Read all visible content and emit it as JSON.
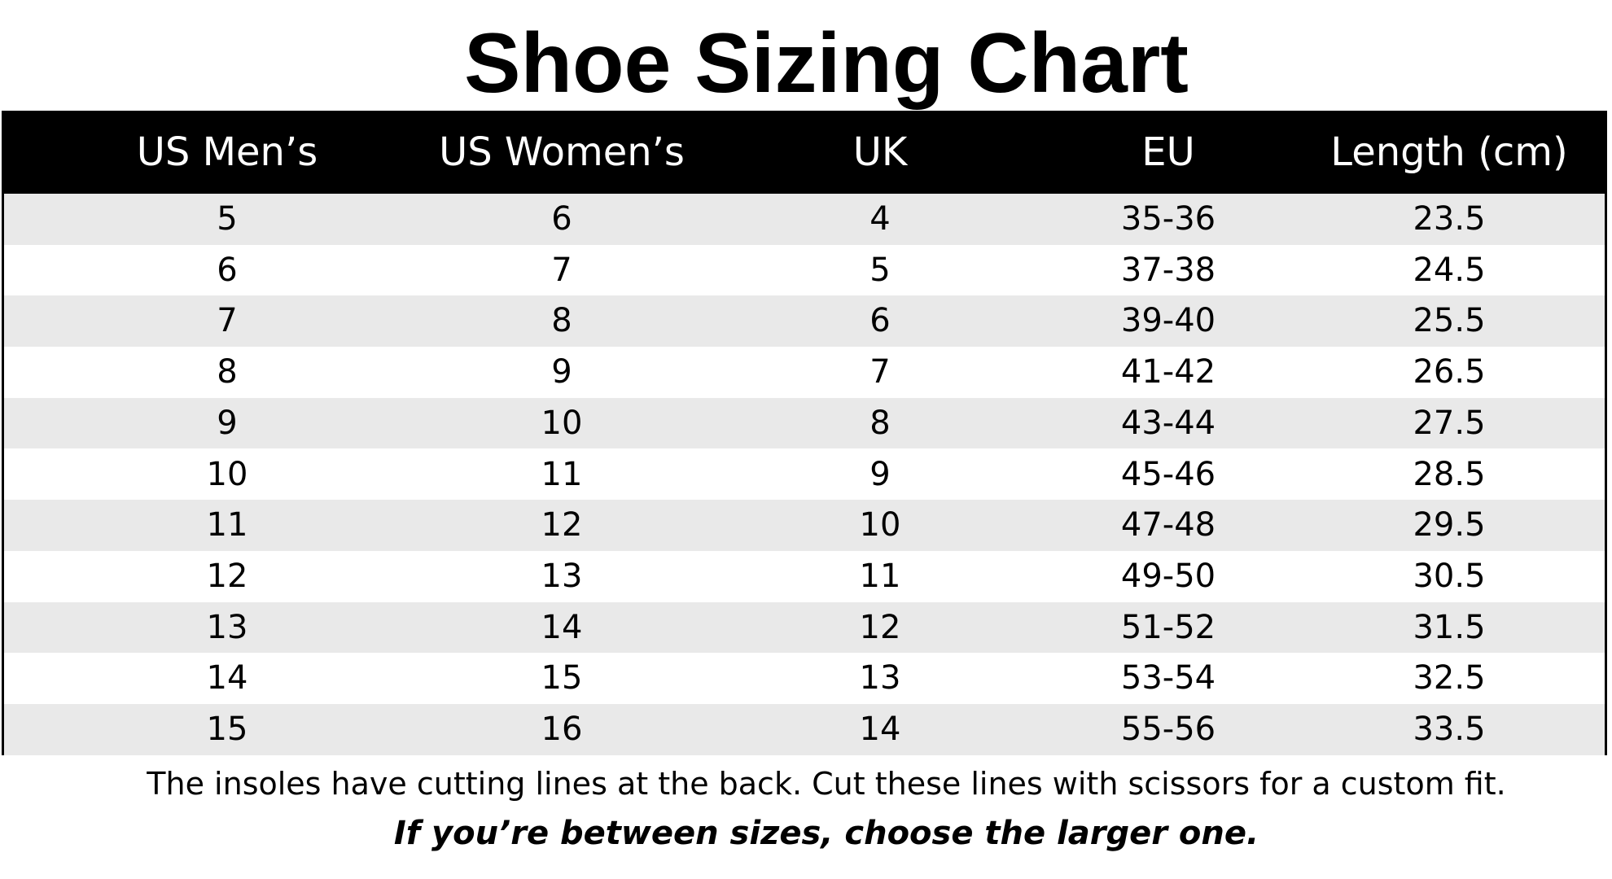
{
  "title": "Shoe Sizing Chart",
  "table": {
    "headers": [
      "US Men’s",
      "US Women’s",
      "UK",
      "EU",
      "Length (cm)"
    ],
    "rows": [
      [
        "5",
        "6",
        "4",
        "35-36",
        "23.5"
      ],
      [
        "6",
        "7",
        "5",
        "37-38",
        "24.5"
      ],
      [
        "7",
        "8",
        "6",
        "39-40",
        "25.5"
      ],
      [
        "8",
        "9",
        "7",
        "41-42",
        "26.5"
      ],
      [
        "9",
        "10",
        "8",
        "43-44",
        "27.5"
      ],
      [
        "10",
        "11",
        "9",
        "45-46",
        "28.5"
      ],
      [
        "11",
        "12",
        "10",
        "47-48",
        "29.5"
      ],
      [
        "12",
        "13",
        "11",
        "49-50",
        "30.5"
      ],
      [
        "13",
        "14",
        "12",
        "51-52",
        "31.5"
      ],
      [
        "14",
        "15",
        "13",
        "53-54",
        "32.5"
      ],
      [
        "15",
        "16",
        "14",
        "55-56",
        "33.5"
      ]
    ]
  },
  "note": "The insoles have cutting lines at the back. Cut these lines with scissors for a custom fit.",
  "tip": "If you’re between sizes, choose the larger one.",
  "colors": {
    "header_bg": "#000000",
    "header_text": "#ffffff",
    "row_shade": "#e9e9e9",
    "row_plain": "#ffffff"
  }
}
